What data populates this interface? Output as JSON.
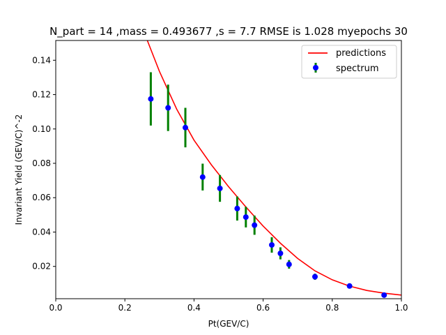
{
  "chart_data": {
    "type": "scatter",
    "title": "N_part = 14 ,mass = 0.493677 ,s = 7.7  RMSE  is  1.028  myepochs 30",
    "xlabel": "Pt(GEV/C)",
    "ylabel": "Invariant Yield (GEV/C)^-2",
    "xlim": [
      0.0,
      1.0
    ],
    "ylim": [
      0.0012,
      0.1515
    ],
    "xticks": [
      0.0,
      0.2,
      0.4,
      0.6,
      0.8,
      1.0
    ],
    "xtick_labels": [
      "0.0",
      "0.2",
      "0.4",
      "0.6",
      "0.8",
      "1.0"
    ],
    "yticks": [
      0.02,
      0.04,
      0.06,
      0.08,
      0.1,
      0.12,
      0.14
    ],
    "ytick_labels": [
      "0.02",
      "0.04",
      "0.06",
      "0.08",
      "0.10",
      "0.12",
      "0.14"
    ],
    "grid": false,
    "legend_position": "top-right",
    "series": [
      {
        "name": "predictions",
        "kind": "line",
        "color": "#ff0000",
        "x": [
          0.265,
          0.3,
          0.35,
          0.4,
          0.45,
          0.5,
          0.55,
          0.6,
          0.65,
          0.7,
          0.75,
          0.8,
          0.85,
          0.9,
          0.95,
          1.0
        ],
        "y": [
          0.1515,
          0.1335,
          0.1115,
          0.0935,
          0.0792,
          0.0664,
          0.0546,
          0.0435,
          0.0335,
          0.0246,
          0.0174,
          0.0122,
          0.0085,
          0.006,
          0.0044,
          0.0033
        ]
      },
      {
        "name": "spectrum",
        "kind": "errorbar",
        "marker_color": "#0000ff",
        "errorbar_color": "#008000",
        "x": [
          0.275,
          0.325,
          0.375,
          0.425,
          0.475,
          0.525,
          0.55,
          0.575,
          0.625,
          0.65,
          0.675,
          0.75,
          0.85,
          0.95
        ],
        "y": [
          0.1175,
          0.1123,
          0.1008,
          0.072,
          0.0654,
          0.0537,
          0.0487,
          0.044,
          0.0325,
          0.0276,
          0.0212,
          0.014,
          0.0086,
          0.0033
        ],
        "err": [
          0.0155,
          0.0135,
          0.0115,
          0.0078,
          0.0078,
          0.007,
          0.006,
          0.0056,
          0.0045,
          0.0035,
          0.0025,
          0.0018,
          0.001,
          0.0005
        ]
      }
    ]
  }
}
